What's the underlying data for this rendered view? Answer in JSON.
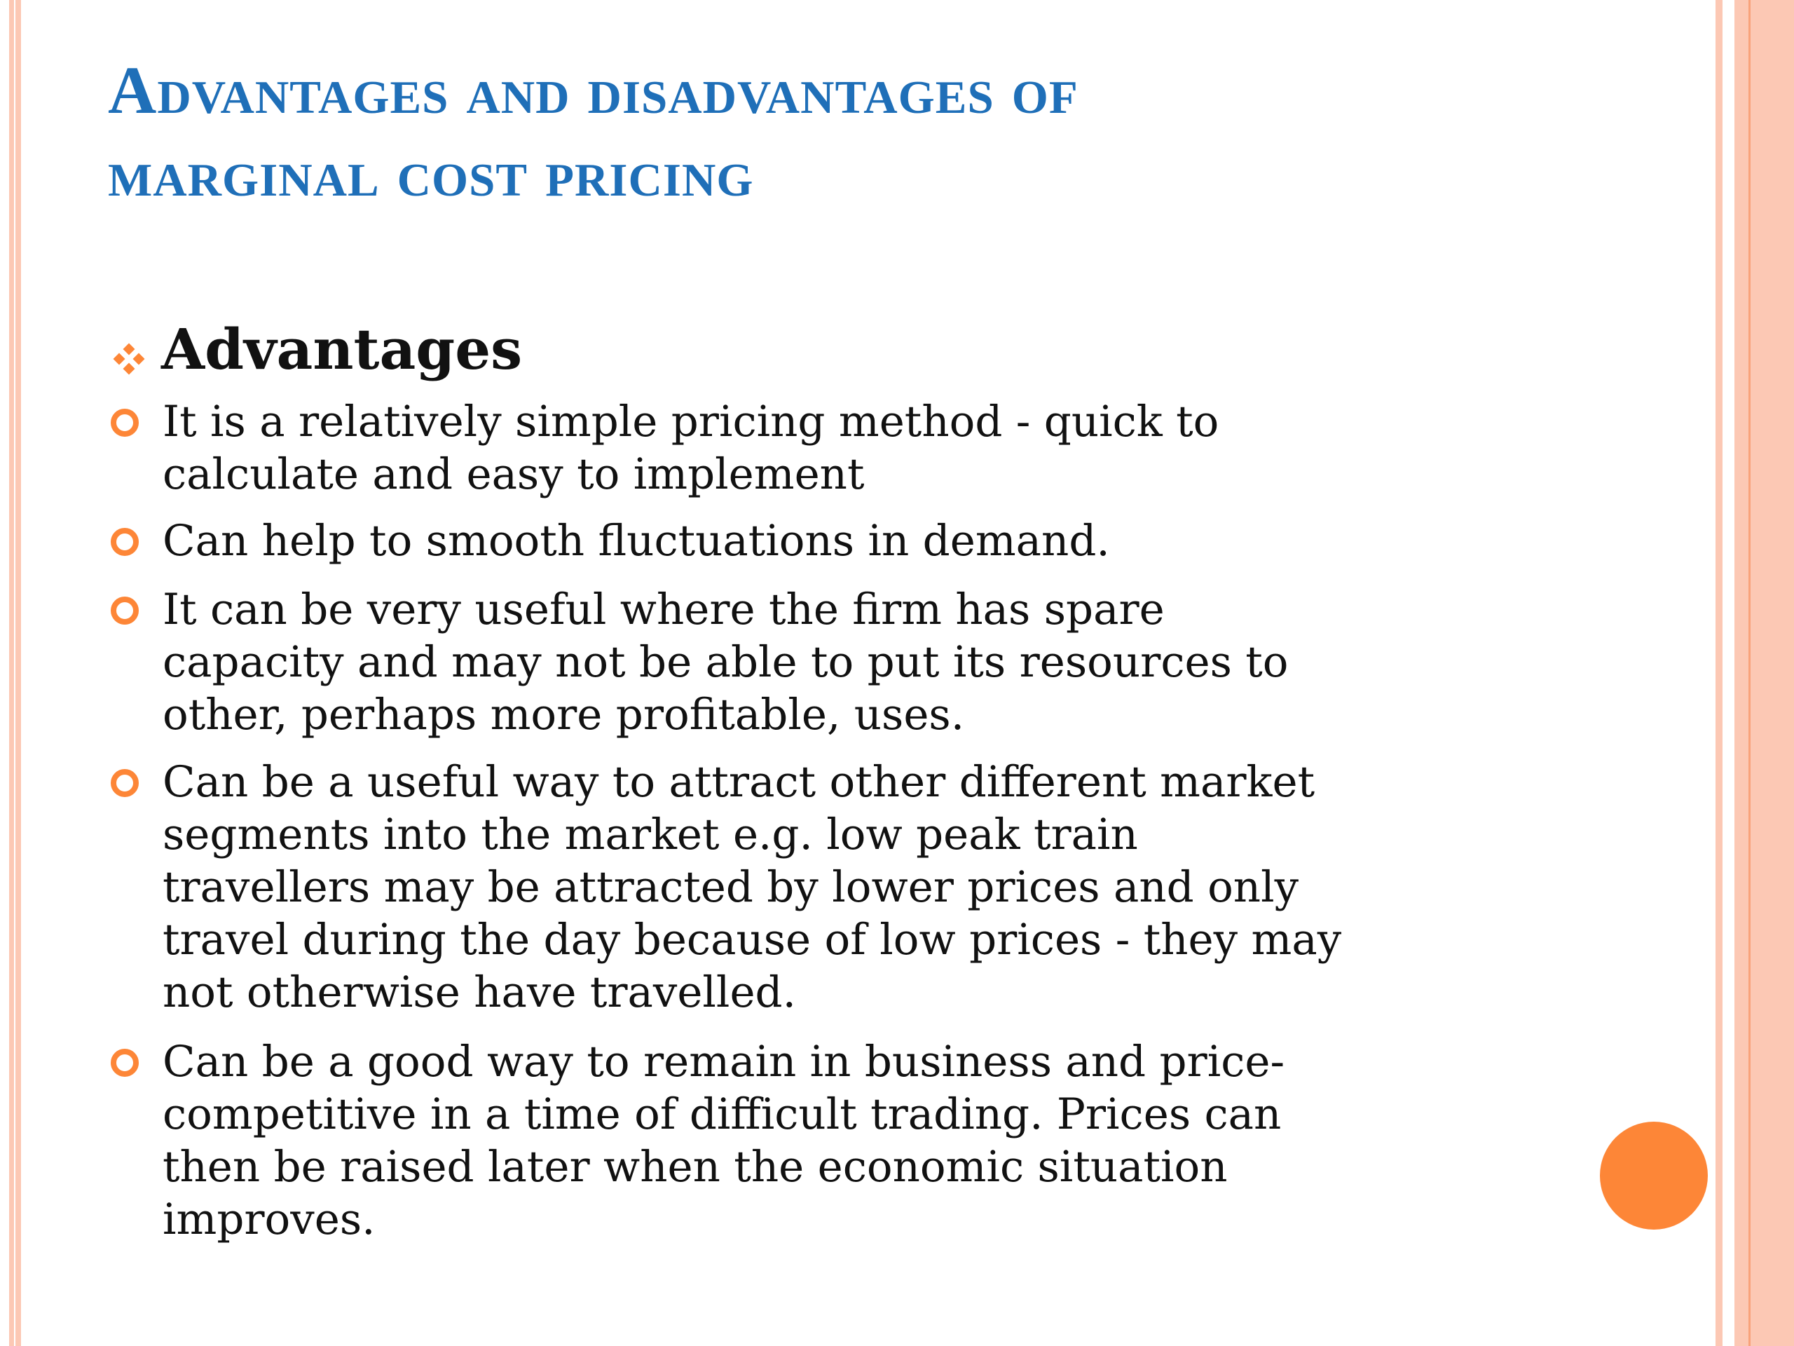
{
  "slide": {
    "title_lines": [
      "Advantages and disadvantages of",
      "marginal cost pricing"
    ],
    "heading": "Advantages",
    "items": [
      {
        "lines": [
          "It is a relatively simple pricing method - quick to",
          "calculate and easy to implement"
        ]
      },
      {
        "lines": [
          "Can help to smooth fluctuations in demand."
        ]
      },
      {
        "lines": [
          "It can be very useful where the firm has spare",
          "capacity and may not be able to put its resources to",
          "other, perhaps more profitable, uses."
        ]
      },
      {
        "lines": [
          "Can be a useful way to attract other different market",
          "segments into the market e.g. low peak train",
          "travellers may be attracted by lower prices and only",
          "travel during the day because of low prices - they may",
          "not otherwise have travelled."
        ]
      },
      {
        "lines": [
          "Can be a good way to remain in business and price-",
          "competitive in a time of difficult trading. Prices can",
          "then be raised later when the economic situation",
          "improves."
        ]
      }
    ]
  },
  "colors": {
    "title": "#1f6fb8",
    "accent": "#fd8637",
    "border": "#fcc8b4"
  },
  "icons": {
    "heading_bullet": "four-diamond-bullet-icon",
    "item_bullet": "ring-bullet-icon",
    "decoration": "orange-circle"
  }
}
